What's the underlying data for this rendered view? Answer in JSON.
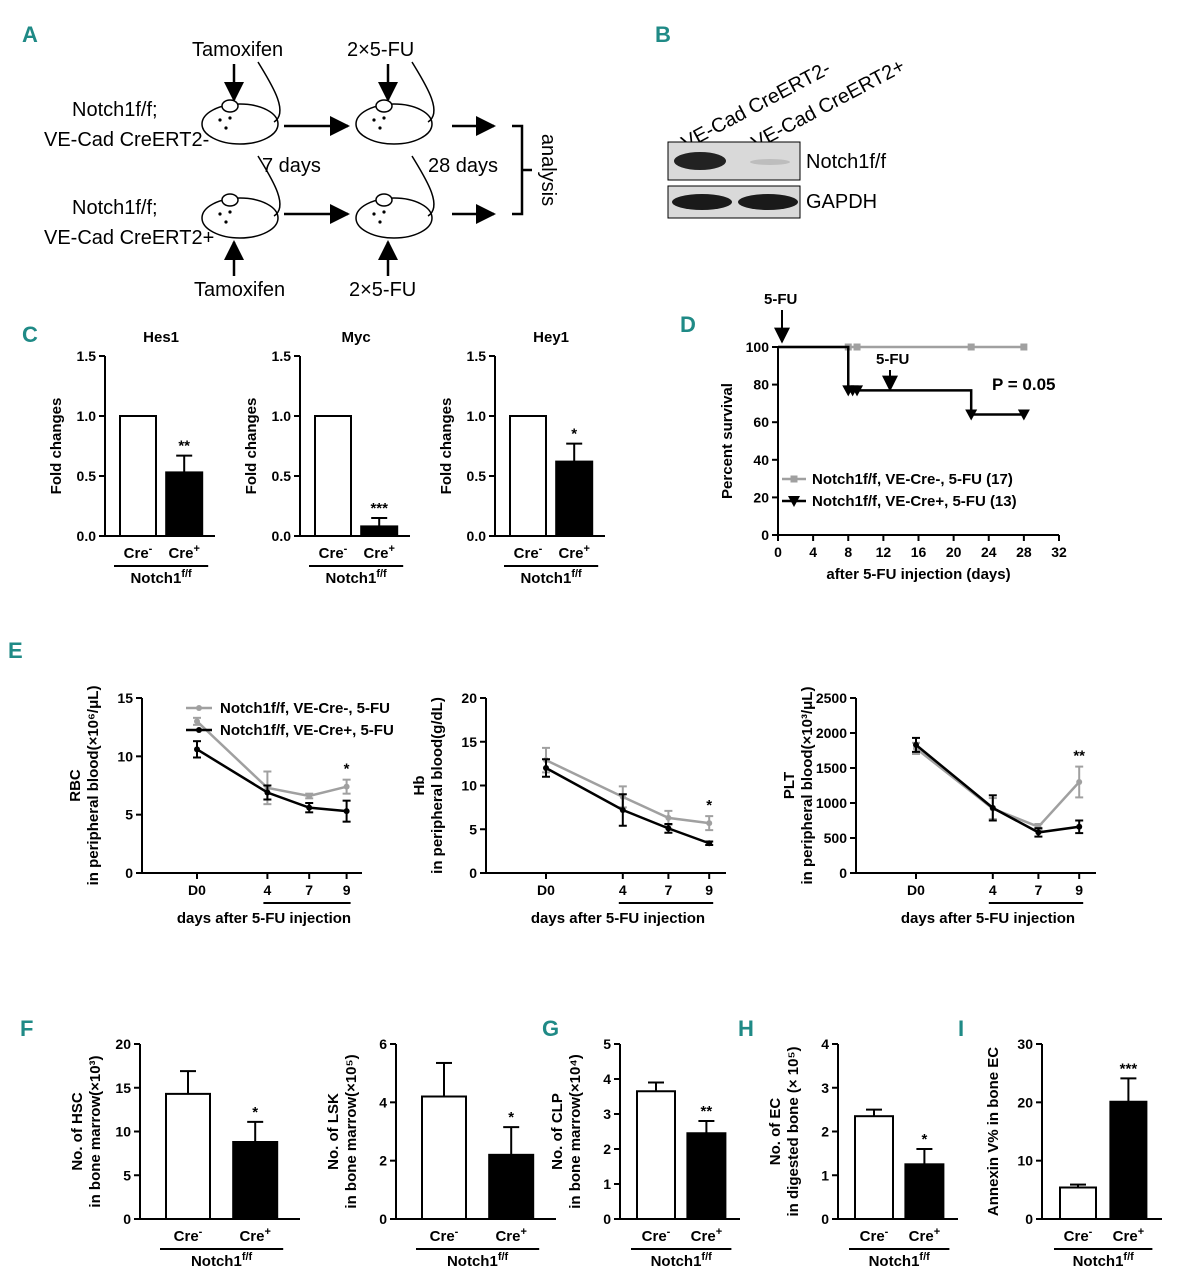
{
  "panels": {
    "a": {
      "label": "A",
      "tamoxifen_top": "Tamoxifen",
      "tamoxifen_bottom": "Tamoxifen",
      "fu_top": "2×5-FU",
      "fu_bottom": "2×5-FU",
      "mouse1_line1": "Notch1f/f;",
      "mouse1_line2": "VE-Cad CreERT2-",
      "mouse2_line1": "Notch1f/f;",
      "mouse2_line2": "VE-Cad CreERT2+",
      "days1": "7 days",
      "days2": "28 days",
      "analysis": "analysis"
    },
    "b": {
      "label": "B",
      "lane1": "VE-Cad CreERT2-",
      "lane2": "VE-Cad CreERT2+",
      "band1": "Notch1f/f",
      "band2": "GAPDH"
    },
    "c": {
      "label": "C"
    },
    "d": {
      "label": "D",
      "fu_top": "5-FU",
      "fu_mid": "5-FU",
      "pvalue": "P = 0.05"
    },
    "e": {
      "label": "E"
    },
    "f": {
      "label": "F"
    },
    "g": {
      "label": "G"
    },
    "h": {
      "label": "H"
    },
    "i": {
      "label": "I"
    }
  },
  "genotype_label": "Notch1f/f",
  "chart_data": [
    {
      "id": "C1",
      "type": "bar",
      "title": "Hes1",
      "ylabel": "Fold changes",
      "categories": [
        "Cre-",
        "Cre+"
      ],
      "values": [
        1.0,
        0.53
      ],
      "errors": [
        0,
        0.14
      ],
      "ylim": [
        0,
        1.5
      ],
      "yticks": [
        "0.0",
        "0.5",
        "1.0",
        "1.5"
      ],
      "significance": "**"
    },
    {
      "id": "C2",
      "type": "bar",
      "title": "Myc",
      "ylabel": "Fold changes",
      "categories": [
        "Cre-",
        "Cre+"
      ],
      "values": [
        1.0,
        0.08
      ],
      "errors": [
        0,
        0.07
      ],
      "ylim": [
        0,
        1.5
      ],
      "yticks": [
        "0.0",
        "0.5",
        "1.0",
        "1.5"
      ],
      "significance": "***"
    },
    {
      "id": "C3",
      "type": "bar",
      "title": "Hey1",
      "ylabel": "Fold changes",
      "categories": [
        "Cre-",
        "Cre+"
      ],
      "values": [
        1.0,
        0.62
      ],
      "errors": [
        0,
        0.15
      ],
      "ylim": [
        0,
        1.5
      ],
      "yticks": [
        "0.0",
        "0.5",
        "1.0",
        "1.5"
      ],
      "significance": "*"
    },
    {
      "id": "D",
      "type": "line",
      "subtype": "survival",
      "xlabel": "after 5-FU injection (days)",
      "ylabel": "Percent survival",
      "xlim": [
        0,
        32
      ],
      "ylim": [
        0,
        100
      ],
      "xticks": [
        "0",
        "4",
        "8",
        "12",
        "16",
        "20",
        "24",
        "28",
        "32"
      ],
      "yticks": [
        "0",
        "20",
        "40",
        "60",
        "80",
        "100"
      ],
      "series": [
        {
          "name": "Notch1f/f, VE-Cre-, 5-FU (17)",
          "color": "#a0a0a0",
          "x": [
            0,
            8,
            9,
            22,
            28
          ],
          "y": [
            100,
            100,
            100,
            100,
            100
          ]
        },
        {
          "name": "Notch1f/f, VE-Cre+, 5-FU (13)",
          "color": "#000000",
          "x": [
            0,
            8,
            8.5,
            9,
            22,
            28
          ],
          "y": [
            100,
            76.9,
            76.9,
            76.9,
            64.1,
            64.1
          ]
        }
      ]
    },
    {
      "id": "E1",
      "type": "line",
      "ylabel": "RBC",
      "ylabel2": "in peripheral blood(×10⁶/μL)",
      "xlabel": "days after 5-FU injection",
      "categories": [
        "D0",
        "4",
        "7",
        "9"
      ],
      "ylim": [
        0,
        15
      ],
      "yticks": [
        "0",
        "5",
        "10",
        "15"
      ],
      "series": [
        {
          "name": "Notch1f/f, VE-Cre-, 5-FU",
          "color": "#a0a0a0",
          "values": [
            13.0,
            7.3,
            6.6,
            7.4
          ],
          "errors": [
            0.3,
            1.4,
            0.2,
            0.6
          ]
        },
        {
          "name": "Notch1f/f, VE-Cre+, 5-FU",
          "color": "#000000",
          "values": [
            10.6,
            6.9,
            5.6,
            5.3
          ],
          "errors": [
            0.7,
            0.6,
            0.4,
            0.9
          ]
        }
      ],
      "significance": [
        "",
        "",
        "",
        "*"
      ]
    },
    {
      "id": "E2",
      "type": "line",
      "ylabel": "Hb",
      "ylabel2": "in peripheral blood(g/dL)",
      "xlabel": "days after 5-FU injection",
      "categories": [
        "D0",
        "4",
        "7",
        "9"
      ],
      "ylim": [
        0,
        20
      ],
      "yticks": [
        "0",
        "5",
        "10",
        "15",
        "20"
      ],
      "series": [
        {
          "name": "Notch1f/f, VE-Cre-, 5-FU",
          "color": "#a0a0a0",
          "values": [
            12.9,
            8.7,
            6.3,
            5.7
          ],
          "errors": [
            1.4,
            1.2,
            0.8,
            0.8
          ]
        },
        {
          "name": "Notch1f/f, VE-Cre+, 5-FU",
          "color": "#000000",
          "values": [
            12.0,
            7.2,
            5.1,
            3.4
          ],
          "errors": [
            1.0,
            1.8,
            0.5,
            0.2
          ]
        }
      ],
      "significance": [
        "",
        "",
        "",
        "*"
      ]
    },
    {
      "id": "E3",
      "type": "line",
      "ylabel": "PLT",
      "ylabel2": "in peripheral blood(×10³/μL)",
      "xlabel": "days after 5-FU injection",
      "categories": [
        "D0",
        "4",
        "7",
        "9"
      ],
      "ylim": [
        0,
        2500
      ],
      "yticks": [
        "0",
        "500",
        "1000",
        "1500",
        "2000",
        "2500"
      ],
      "series": [
        {
          "name": "Notch1f/f, VE-Cre-, 5-FU",
          "color": "#a0a0a0",
          "values": [
            1780,
            920,
            660,
            1300
          ],
          "errors": [
            80,
            150,
            40,
            220
          ]
        },
        {
          "name": "Notch1f/f, VE-Cre+, 5-FU",
          "color": "#000000",
          "values": [
            1830,
            930,
            580,
            660
          ],
          "errors": [
            100,
            180,
            60,
            90
          ]
        }
      ],
      "significance": [
        "",
        "",
        "",
        "**"
      ]
    },
    {
      "id": "F1",
      "type": "bar",
      "ylabel": "No. of HSC",
      "ylabel2": "in bone marrow(×10³)",
      "categories": [
        "Cre-",
        "Cre+"
      ],
      "values": [
        14.3,
        8.8
      ],
      "errors": [
        2.6,
        2.3
      ],
      "ylim": [
        0,
        20
      ],
      "yticks": [
        "0",
        "5",
        "10",
        "15",
        "20"
      ],
      "significance": "*"
    },
    {
      "id": "F2",
      "type": "bar",
      "ylabel": "No. of LSK",
      "ylabel2": "in bone marrow(×10⁵)",
      "categories": [
        "Cre-",
        "Cre+"
      ],
      "values": [
        4.2,
        2.2
      ],
      "errors": [
        1.15,
        0.95
      ],
      "ylim": [
        0,
        6
      ],
      "yticks": [
        "0",
        "2",
        "4",
        "6"
      ],
      "significance": "*"
    },
    {
      "id": "G",
      "type": "bar",
      "ylabel": "No. of CLP",
      "ylabel2": "in bone marrow(×10⁴)",
      "categories": [
        "Cre-",
        "Cre+"
      ],
      "values": [
        3.65,
        2.45
      ],
      "errors": [
        0.25,
        0.35
      ],
      "ylim": [
        0,
        5
      ],
      "yticks": [
        "0",
        "1",
        "2",
        "3",
        "4",
        "5"
      ],
      "significance": "**"
    },
    {
      "id": "H",
      "type": "bar",
      "ylabel": "No. of  EC",
      "ylabel2": "in digested bone (× 10⁵)",
      "categories": [
        "Cre-",
        "Cre+"
      ],
      "values": [
        2.35,
        1.25
      ],
      "errors": [
        0.15,
        0.35
      ],
      "ylim": [
        0,
        4
      ],
      "yticks": [
        "0",
        "1",
        "2",
        "3",
        "4"
      ],
      "significance": "*"
    },
    {
      "id": "I",
      "type": "bar",
      "ylabel": "Annexin V% in bone EC",
      "ylabel2": "",
      "categories": [
        "Cre-",
        "Cre+"
      ],
      "values": [
        5.4,
        20.1
      ],
      "errors": [
        0.5,
        4.0
      ],
      "ylim": [
        0,
        30
      ],
      "yticks": [
        "0",
        "10",
        "20",
        "30"
      ],
      "significance": "***"
    }
  ]
}
